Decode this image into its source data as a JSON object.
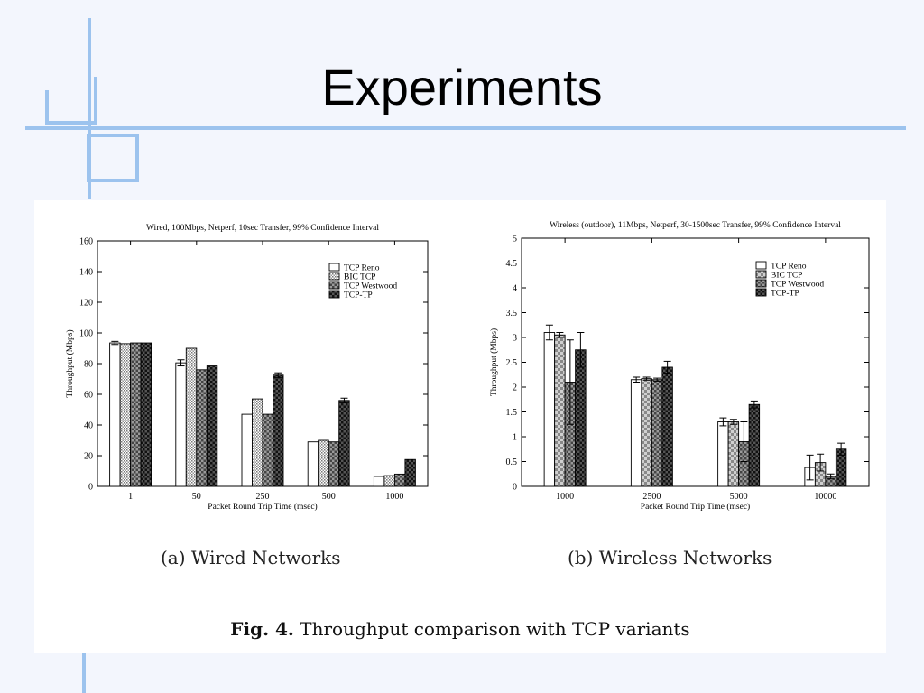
{
  "slide": {
    "title": "Experiments",
    "accent_color": "#9cc3ee"
  },
  "figure": {
    "caption_label": "Fig. 4.",
    "caption_text": "Throughput comparison with TCP variants",
    "subcaption_a": "(a) Wired Networks",
    "subcaption_b": "(b) Wireless Networks"
  },
  "chart_data": [
    {
      "type": "bar",
      "title": "Wired, 100Mbps, Netperf, 10sec Transfer, 99% Confidence Interval",
      "xlabel": "Packet Round Trip Time (msec)",
      "ylabel": "Throughput (Mbps)",
      "ylim": [
        0,
        160
      ],
      "yticks": [
        0,
        20,
        40,
        60,
        80,
        100,
        120,
        140,
        160
      ],
      "categories": [
        "1",
        "50",
        "250",
        "500",
        "1000"
      ],
      "legend_position": "top-right",
      "series": [
        {
          "name": "TCP Reno",
          "pattern": "white",
          "values": [
            93.5,
            80.5,
            47,
            29,
            6.5
          ],
          "errors": [
            1,
            2,
            0,
            0,
            0
          ]
        },
        {
          "name": "BIC TCP",
          "pattern": "dotted",
          "values": [
            93,
            90,
            57,
            30,
            7
          ],
          "errors": [
            0,
            0,
            0,
            0,
            0
          ]
        },
        {
          "name": "TCP Westwood",
          "pattern": "checker-grey",
          "values": [
            93.5,
            76,
            47,
            29,
            8
          ],
          "errors": [
            0,
            0,
            0,
            0,
            0
          ]
        },
        {
          "name": "TCP-TP",
          "pattern": "checker-dark",
          "values": [
            93.5,
            78.5,
            72.5,
            56,
            17.5
          ],
          "errors": [
            0,
            0,
            1.5,
            1.5,
            0
          ]
        }
      ]
    },
    {
      "type": "bar",
      "title": "Wireless (outdoor), 11Mbps, Netperf, 30-1500sec Transfer, 99% Confidence Interval",
      "xlabel": "Packet Round Trip Time (msec)",
      "ylabel": "Throughput (Mbps)",
      "ylim": [
        0,
        5
      ],
      "yticks": [
        0,
        0.5,
        1,
        1.5,
        2,
        2.5,
        3,
        3.5,
        4,
        4.5,
        5
      ],
      "categories": [
        "1000",
        "2500",
        "5000",
        "10000"
      ],
      "legend_position": "top-right",
      "series": [
        {
          "name": "TCP Reno",
          "pattern": "white",
          "values": [
            3.1,
            2.15,
            1.3,
            0.38
          ],
          "errors": [
            0.15,
            0.05,
            0.08,
            0.25
          ]
        },
        {
          "name": "BIC TCP",
          "pattern": "checker-light",
          "values": [
            3.05,
            2.17,
            1.3,
            0.48
          ],
          "errors": [
            0.05,
            0.03,
            0.05,
            0.17
          ]
        },
        {
          "name": "TCP Westwood",
          "pattern": "checker-grey",
          "values": [
            2.1,
            2.15,
            0.9,
            0.2
          ],
          "errors": [
            0.85,
            0.03,
            0.4,
            0.05
          ]
        },
        {
          "name": "TCP-TP",
          "pattern": "checker-dark",
          "values": [
            2.75,
            2.4,
            1.65,
            0.75
          ],
          "errors": [
            0.35,
            0.12,
            0.07,
            0.12
          ]
        }
      ]
    }
  ]
}
